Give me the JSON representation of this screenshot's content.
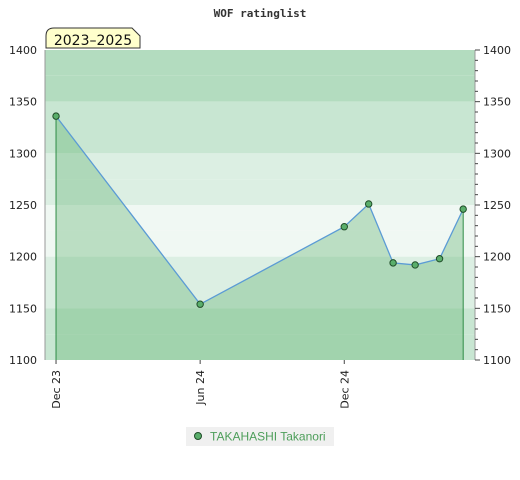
{
  "chart_data": {
    "type": "line",
    "title": "WOF ratinglist",
    "period_label": "2023–2025",
    "y_range": [
      1100,
      1400
    ],
    "y_ticks": [
      1100,
      1150,
      1200,
      1250,
      1300,
      1350,
      1400
    ],
    "x_tick_labels": [
      {
        "label": "Dec 23",
        "date": "2023-12-01"
      },
      {
        "label": "Jun 24",
        "date": "2024-06-01"
      },
      {
        "label": "Dec 24",
        "date": "2024-12-01"
      }
    ],
    "x_range": [
      "2023-11-17",
      "2025-05-16"
    ],
    "series": [
      {
        "name": "TAKAHASHI Takanori",
        "color": "#4d9e5a",
        "line_color": "#5b9bd5",
        "points": [
          {
            "date": "2023-12-01",
            "rating": 1336
          },
          {
            "date": "2024-06-01",
            "rating": 1154
          },
          {
            "date": "2024-12-01",
            "rating": 1229
          },
          {
            "date": "2025-01-01",
            "rating": 1251
          },
          {
            "date": "2025-02-01",
            "rating": 1194
          },
          {
            "date": "2025-03-01",
            "rating": 1192
          },
          {
            "date": "2025-04-01",
            "rating": 1198
          },
          {
            "date": "2025-05-01",
            "rating": 1246
          }
        ]
      }
    ],
    "grid": true,
    "legend_position": "bottom-center",
    "colors": {
      "band_dark": "#b3dcbf",
      "band_mid": "#c8e6d2",
      "band_light": "#dcefe3",
      "band_pale": "#f0f8f3",
      "area_fill": "#5aae6b",
      "marker_fill": "#5aae6b",
      "marker_stroke": "#1f4d28",
      "period_bg": "#ffffcc"
    }
  }
}
